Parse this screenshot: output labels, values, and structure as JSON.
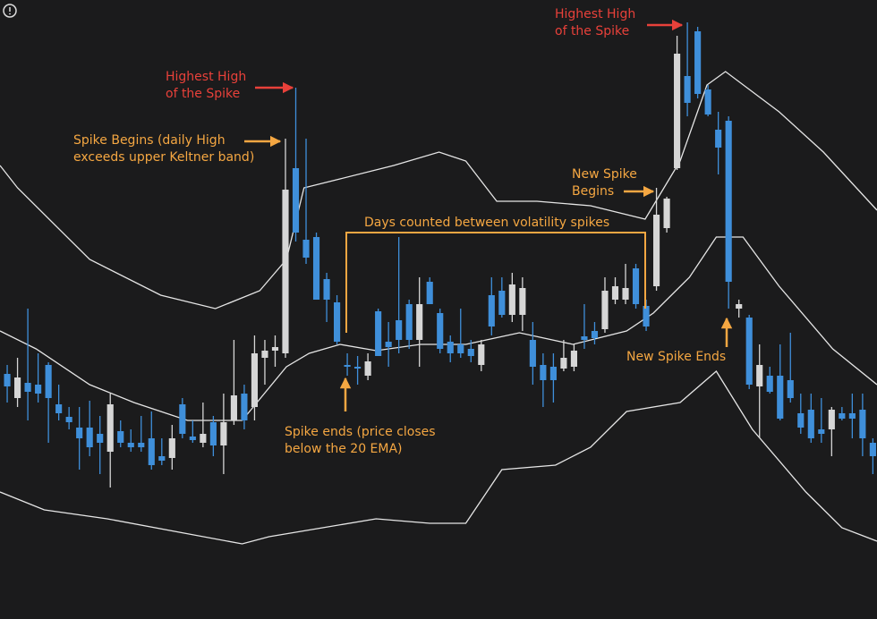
{
  "chart_data": {
    "type": "candlestick",
    "up_color": "#d6d6d6",
    "down_color": "#3f8fda",
    "band_color": "#e6e6e6",
    "xlim": [
      -0.7,
      84.4
    ],
    "ylim": [
      0,
      692
    ],
    "x": [
      0,
      1,
      2,
      3,
      4,
      5,
      6,
      7,
      8,
      9,
      10,
      11,
      12,
      13,
      14,
      15,
      16,
      17,
      18,
      19,
      20,
      21,
      22,
      23,
      24,
      25,
      26,
      27,
      28,
      29,
      30,
      31,
      32,
      33,
      34,
      35,
      36,
      37,
      38,
      39,
      40,
      41,
      42,
      43,
      44,
      45,
      46,
      47,
      48,
      49,
      50,
      51,
      52,
      53,
      54,
      55,
      56,
      57,
      58,
      59,
      60,
      61,
      62,
      63,
      64,
      65,
      66,
      67,
      68,
      69,
      70,
      71,
      72,
      73,
      74,
      75,
      76,
      77,
      78,
      79,
      80,
      81,
      82,
      83,
      84
    ],
    "open": [
      274,
      247,
      264,
      262,
      284,
      240,
      226,
      214,
      214,
      207,
      187,
      210,
      197,
      197,
      202,
      182,
      180,
      240,
      204,
      197,
      220,
      194,
      222,
      252,
      237,
      292,
      300,
      297,
      504,
      424,
      427,
      380,
      354,
      284,
      282,
      272,
      344,
      310,
      334,
      352,
      312,
      377,
      342,
      310,
      307,
      302,
      284,
      362,
      367,
      340,
      340,
      312,
      284,
      282,
      280,
      282,
      316,
      322,
      324,
      357,
      357,
      392,
      350,
      372,
      437,
      504,
      607,
      657,
      592,
      547,
      557,
      347,
      337,
      260,
      272,
      272,
      267,
      230,
      234,
      212,
      212,
      230,
      230,
      234,
      197
    ],
    "high": [
      284,
      292,
      347,
      297,
      287,
      262,
      237,
      237,
      244,
      227,
      252,
      222,
      212,
      227,
      232,
      202,
      217,
      247,
      222,
      242,
      227,
      252,
      312,
      262,
      317,
      312,
      317,
      537,
      594,
      537,
      432,
      387,
      362,
      297,
      294,
      297,
      347,
      332,
      427,
      357,
      382,
      382,
      347,
      317,
      347,
      312,
      312,
      382,
      382,
      387,
      382,
      332,
      297,
      297,
      312,
      307,
      352,
      332,
      382,
      382,
      397,
      397,
      357,
      482,
      472,
      652,
      667,
      662,
      597,
      567,
      562,
      357,
      340,
      307,
      282,
      307,
      320,
      252,
      252,
      247,
      237,
      237,
      252,
      252,
      202
    ],
    "low": [
      242,
      237,
      222,
      242,
      197,
      222,
      212,
      167,
      182,
      162,
      147,
      192,
      187,
      187,
      167,
      172,
      167,
      202,
      197,
      192,
      182,
      162,
      217,
      212,
      222,
      262,
      282,
      292,
      422,
      397,
      357,
      332,
      307,
      272,
      262,
      267,
      294,
      282,
      297,
      302,
      282,
      352,
      297,
      287,
      292,
      287,
      277,
      317,
      337,
      332,
      322,
      262,
      237,
      242,
      277,
      277,
      302,
      307,
      320,
      352,
      352,
      347,
      322,
      367,
      432,
      502,
      562,
      582,
      562,
      497,
      347,
      337,
      257,
      202,
      252,
      222,
      242,
      207,
      197,
      197,
      182,
      222,
      202,
      182,
      162
    ],
    "close": [
      260,
      270,
      254,
      252,
      247,
      230,
      220,
      202,
      192,
      197,
      240,
      197,
      192,
      192,
      172,
      177,
      202,
      207,
      200,
      207,
      194,
      220,
      250,
      222,
      297,
      300,
      304,
      480,
      432,
      404,
      357,
      357,
      310,
      282,
      280,
      288,
      294,
      304,
      312,
      312,
      352,
      352,
      302,
      297,
      297,
      294,
      307,
      327,
      340,
      374,
      370,
      282,
      267,
      267,
      292,
      300,
      312,
      314,
      367,
      372,
      370,
      352,
      327,
      452,
      470,
      632,
      577,
      587,
      564,
      527,
      377,
      352,
      262,
      284,
      254,
      224,
      247,
      214,
      202,
      207,
      234,
      224,
      224,
      202,
      182
    ],
    "series": [
      {
        "x": [
          -0.7,
          1.0,
          8.0,
          14.9,
          20.2,
          24.5,
          27.1,
          28.8,
          32.3,
          37.5,
          41.9,
          44.5,
          47.5,
          51.4,
          56.6,
          61.9,
          65.3,
          67.9,
          69.7,
          74.9,
          79.2,
          84.4
        ],
        "values": [
          507,
          482,
          402,
          362,
          347,
          367,
          402,
          482,
          492,
          507,
          522,
          512,
          467,
          467,
          462,
          447,
          512,
          597,
          612,
          567,
          522,
          457
        ]
      },
      {
        "x": [
          -0.7,
          2.8,
          8.0,
          12.3,
          17.5,
          22.8,
          27.1,
          29.3,
          32.3,
          35.8,
          40.1,
          44.5,
          49.7,
          54.9,
          60.1,
          62.7,
          66.2,
          68.8,
          71.4,
          74.9,
          80.1,
          84.4
        ],
        "values": [
          322,
          302,
          262,
          242,
          222,
          222,
          282,
          297,
          307,
          300,
          307,
          307,
          320,
          307,
          322,
          342,
          382,
          427,
          427,
          372,
          302,
          262
        ]
      },
      {
        "x": [
          -0.7,
          3.6,
          9.7,
          16.7,
          22.8,
          25.4,
          30.6,
          35.8,
          41.0,
          44.5,
          48.0,
          53.2,
          56.6,
          60.1,
          65.3,
          68.8,
          72.3,
          77.5,
          81.0,
          84.4
        ],
        "values": [
          142,
          122,
          112,
          97,
          84,
          92,
          102,
          112,
          107,
          107,
          167,
          172,
          192,
          232,
          242,
          277,
          212,
          142,
          102,
          87
        ]
      }
    ],
    "annotations": [
      {
        "lines": [
          "Highest High",
          "of the Spike"
        ],
        "color": "#e8413a"
      },
      {
        "lines": [
          "Spike Begins (daily High",
          "exceeds upper Keltner band)"
        ],
        "color": "#f5a742"
      },
      {
        "lines": [
          "Spike ends (price closes",
          "below the 20 EMA)"
        ],
        "color": "#f5a742"
      },
      {
        "lines": [
          "Days counted between volatility spikes"
        ],
        "color": "#f5a742"
      },
      {
        "lines": [
          "Highest High",
          "of the Spike"
        ],
        "color": "#e8413a"
      },
      {
        "lines": [
          "New Spike",
          "Begins"
        ],
        "color": "#f5a742"
      },
      {
        "lines": [
          "New Spike Ends"
        ],
        "color": "#f5a742"
      }
    ]
  }
}
